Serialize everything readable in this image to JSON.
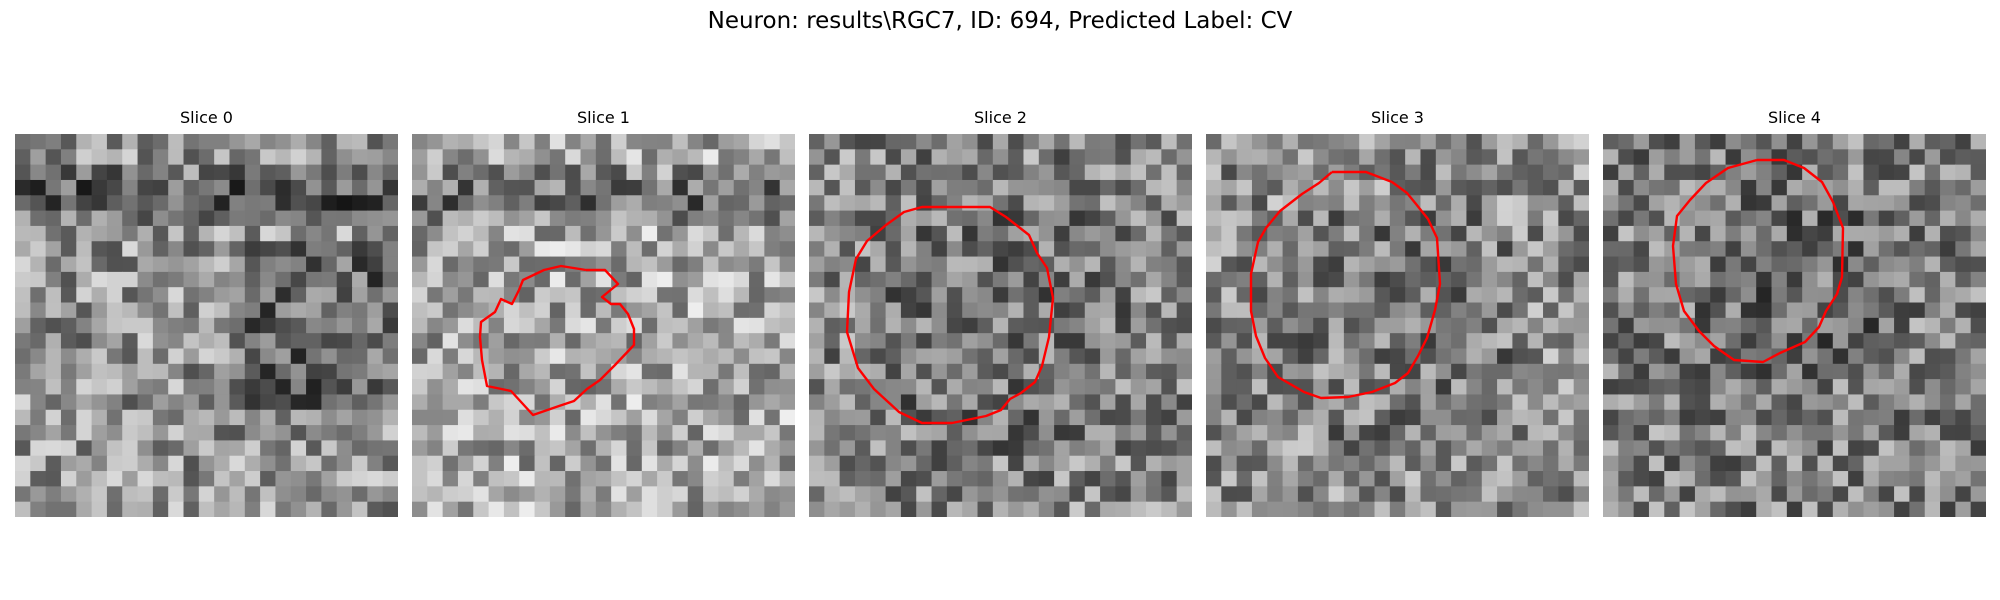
{
  "figure": {
    "title": "Neuron: results\\RGC7, ID: 694, Predicted Label: CV"
  },
  "colors": {
    "contour": "#ff0000",
    "background": "#ffffff"
  },
  "panels": [
    {
      "title": "Slice 0",
      "has_contour": false,
      "seed": 11,
      "mean": 0.58,
      "dark_band": true
    },
    {
      "title": "Slice 1",
      "has_contour": true,
      "seed": 23,
      "mean": 0.66,
      "dark_band": true
    },
    {
      "title": "Slice 2",
      "has_contour": true,
      "seed": 37,
      "mean": 0.52,
      "dark_band": false
    },
    {
      "title": "Slice 3",
      "has_contour": true,
      "seed": 51,
      "mean": 0.55,
      "dark_band": false
    },
    {
      "title": "Slice 4",
      "has_contour": true,
      "seed": 67,
      "mean": 0.5,
      "dark_band": false
    }
  ]
}
